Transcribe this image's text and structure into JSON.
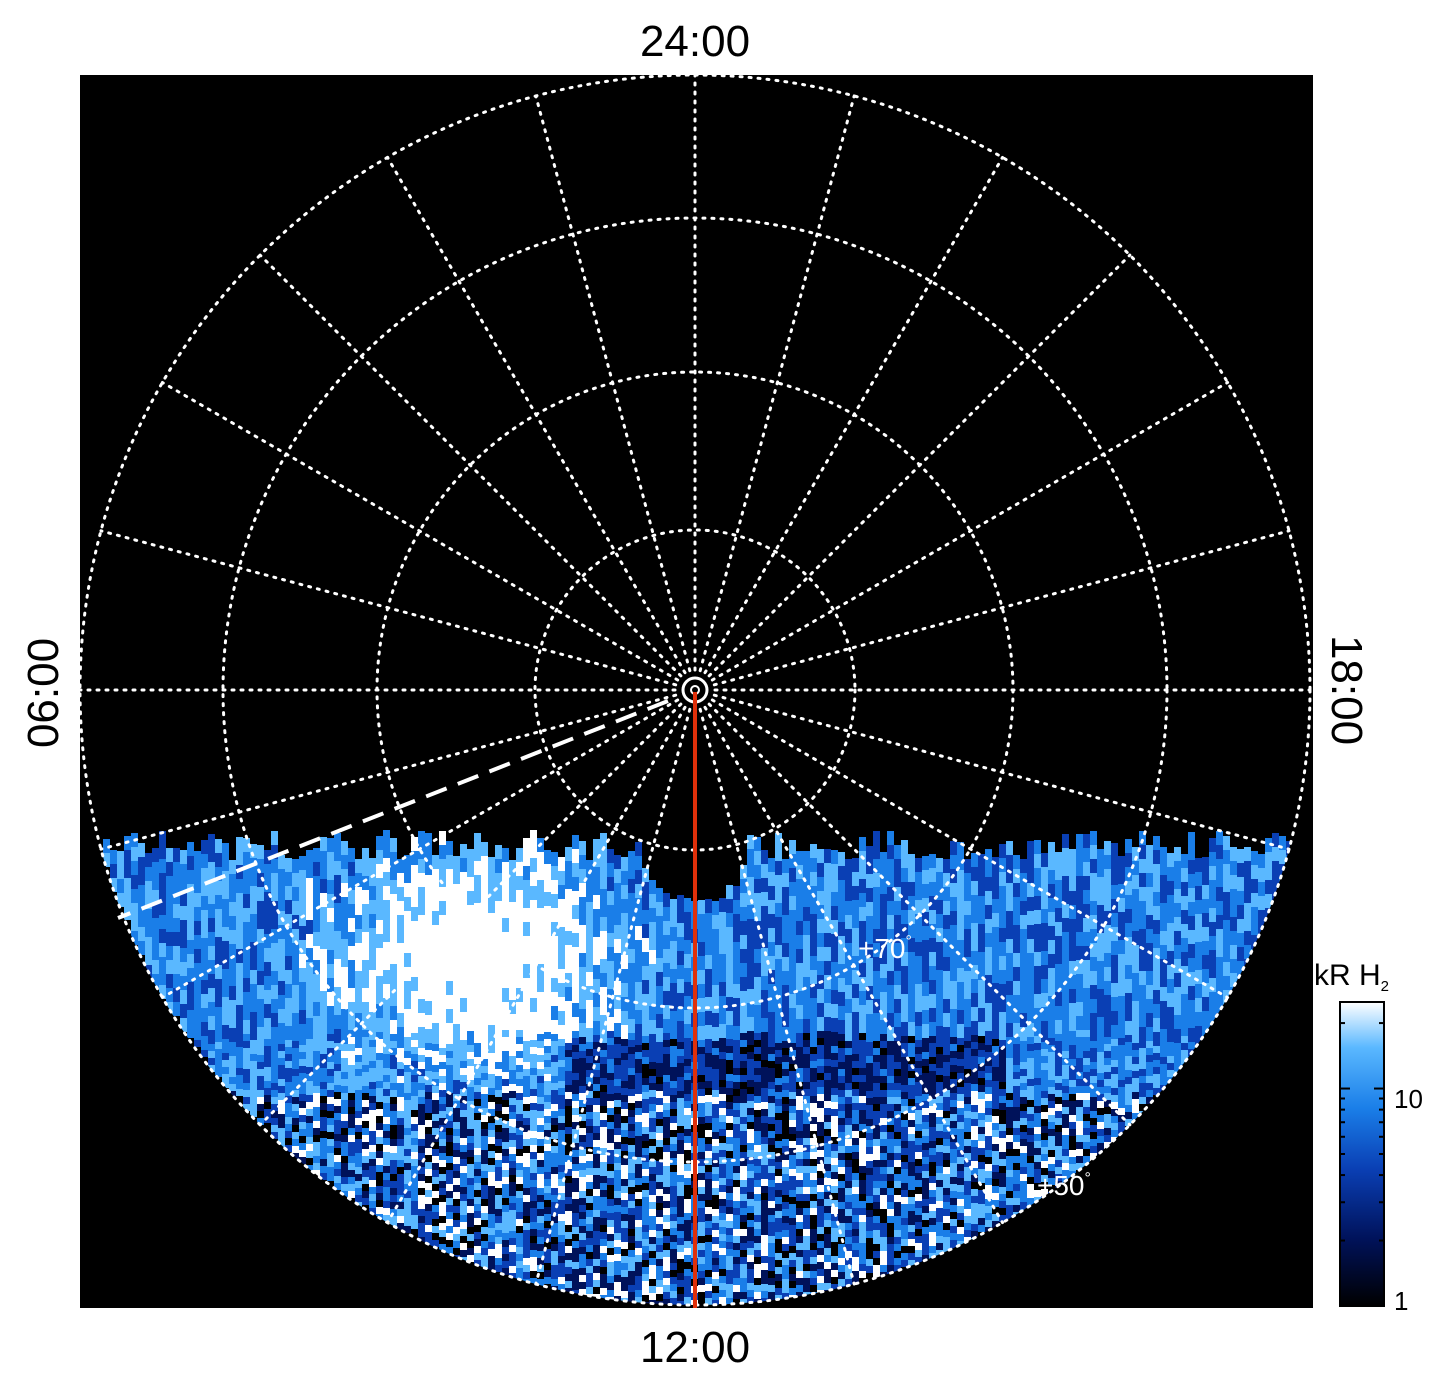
{
  "local_time_labels": {
    "top": "24:00",
    "bottom": "12:00",
    "left": "06:00",
    "right": "18:00"
  },
  "latitude_labels": {
    "inner": "+70",
    "outer": "+50",
    "degree_mark": "°"
  },
  "colorbar": {
    "title": "kR H",
    "title_subscript": "2",
    "tick_high": "10",
    "tick_low": "1",
    "colors": [
      "#000000",
      "#00125a",
      "#0a3fb4",
      "#1a7ee8",
      "#5ab8ff",
      "#ffffff"
    ]
  },
  "overlay_colors": {
    "grid": "#ffffff",
    "meridian_line": "#e0300a",
    "background": "#000000"
  }
}
